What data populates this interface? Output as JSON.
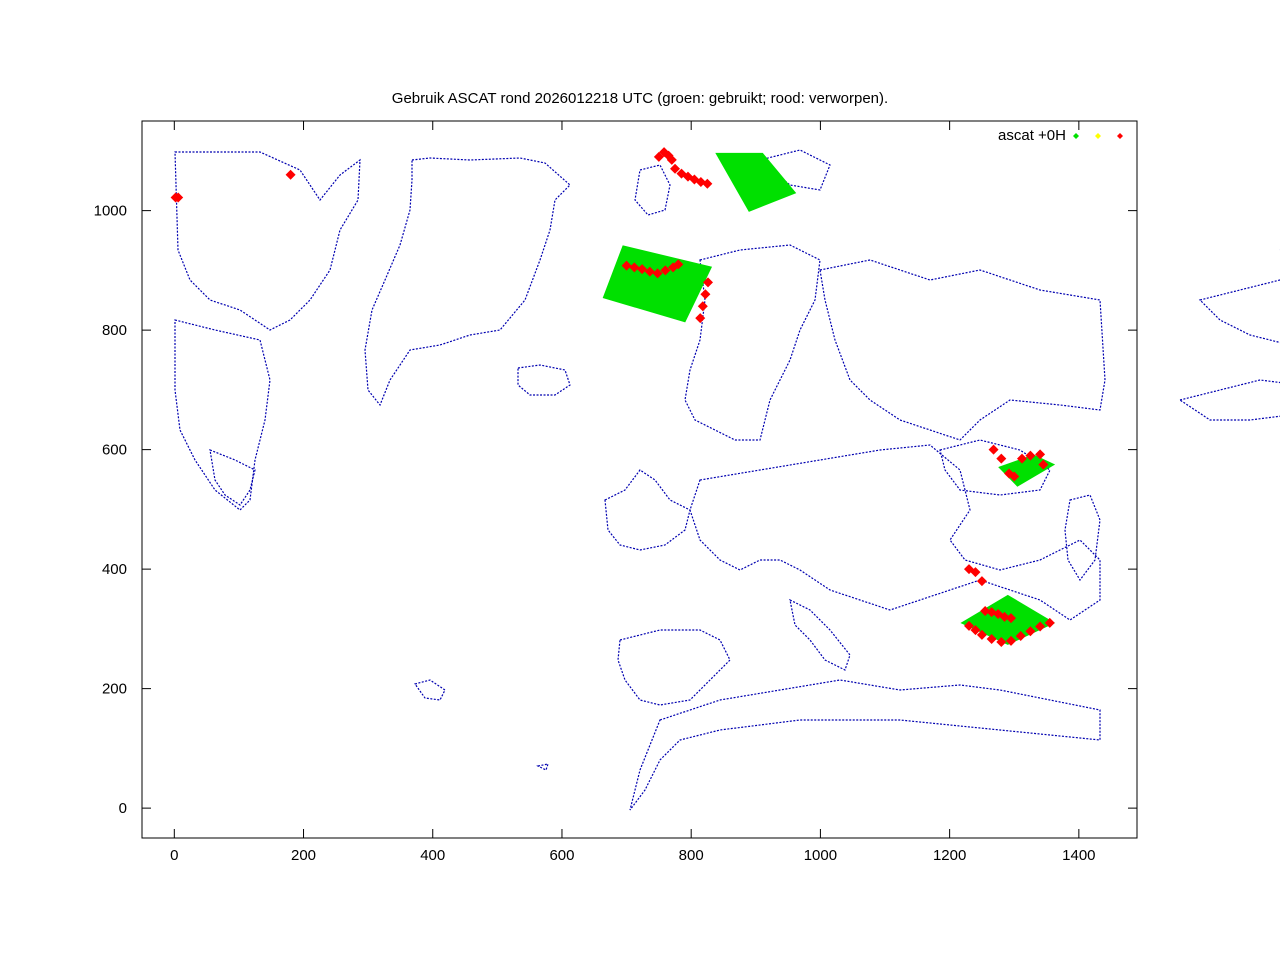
{
  "chart_data": {
    "type": "scatter",
    "title": "Gebruik ASCAT rond 2026012218 UTC (groen: gebruikt; rood: verworpen).",
    "xlabel": "",
    "ylabel": "",
    "xlim": [
      -50,
      1490
    ],
    "ylim": [
      -50,
      1150
    ],
    "xticks": [
      0,
      200,
      400,
      600,
      800,
      1000,
      1200,
      1400
    ],
    "yticks": [
      0,
      200,
      400,
      600,
      800,
      1000
    ],
    "grid": false,
    "legend_position": "top-right",
    "legend_label": "ascat +0H",
    "colors": {
      "used": "#00e000",
      "flagged": "#ffff00",
      "rejected": "#ff0000",
      "coast": "#0000b0"
    },
    "series": [
      {
        "name": "ascat +0H",
        "marker_colors": [
          "#00e000",
          "#ffff00",
          "#ff0000"
        ],
        "swaths_used": [
          {
            "corners": [
              [
                840,
                1095
              ],
              [
                910,
                1095
              ],
              [
                960,
                1030
              ],
              [
                890,
                1000
              ]
            ]
          },
          {
            "corners": [
              [
                695,
                940
              ],
              [
                830,
                905
              ],
              [
                790,
                815
              ],
              [
                665,
                855
              ]
            ]
          },
          {
            "corners": [
              [
                1278,
                570
              ],
              [
                1330,
                590
              ],
              [
                1360,
                575
              ],
              [
                1305,
                540
              ]
            ]
          },
          {
            "corners": [
              [
                1220,
                310
              ],
              [
                1290,
                355
              ],
              [
                1360,
                310
              ],
              [
                1290,
                275
              ]
            ]
          }
        ],
        "points_rejected": [
          [
            2,
            1022
          ],
          [
            6,
            1022
          ],
          [
            180,
            1060
          ],
          [
            750,
            1090
          ],
          [
            758,
            1098
          ],
          [
            765,
            1092
          ],
          [
            770,
            1085
          ],
          [
            775,
            1070
          ],
          [
            785,
            1062
          ],
          [
            795,
            1057
          ],
          [
            805,
            1052
          ],
          [
            815,
            1048
          ],
          [
            825,
            1045
          ],
          [
            700,
            908
          ],
          [
            712,
            905
          ],
          [
            724,
            902
          ],
          [
            736,
            898
          ],
          [
            748,
            895
          ],
          [
            760,
            900
          ],
          [
            772,
            905
          ],
          [
            780,
            910
          ],
          [
            826,
            880
          ],
          [
            822,
            860
          ],
          [
            818,
            840
          ],
          [
            814,
            820
          ],
          [
            1268,
            600
          ],
          [
            1280,
            585
          ],
          [
            1292,
            560
          ],
          [
            1300,
            555
          ],
          [
            1312,
            585
          ],
          [
            1325,
            590
          ],
          [
            1340,
            592
          ],
          [
            1345,
            575
          ],
          [
            1230,
            400
          ],
          [
            1240,
            395
          ],
          [
            1250,
            380
          ],
          [
            1255,
            330
          ],
          [
            1265,
            328
          ],
          [
            1275,
            325
          ],
          [
            1285,
            320
          ],
          [
            1295,
            318
          ],
          [
            1230,
            305
          ],
          [
            1240,
            298
          ],
          [
            1250,
            290
          ],
          [
            1265,
            283
          ],
          [
            1280,
            278
          ],
          [
            1295,
            280
          ],
          [
            1310,
            288
          ],
          [
            1325,
            296
          ],
          [
            1340,
            304
          ],
          [
            1355,
            310
          ]
        ]
      }
    ]
  }
}
